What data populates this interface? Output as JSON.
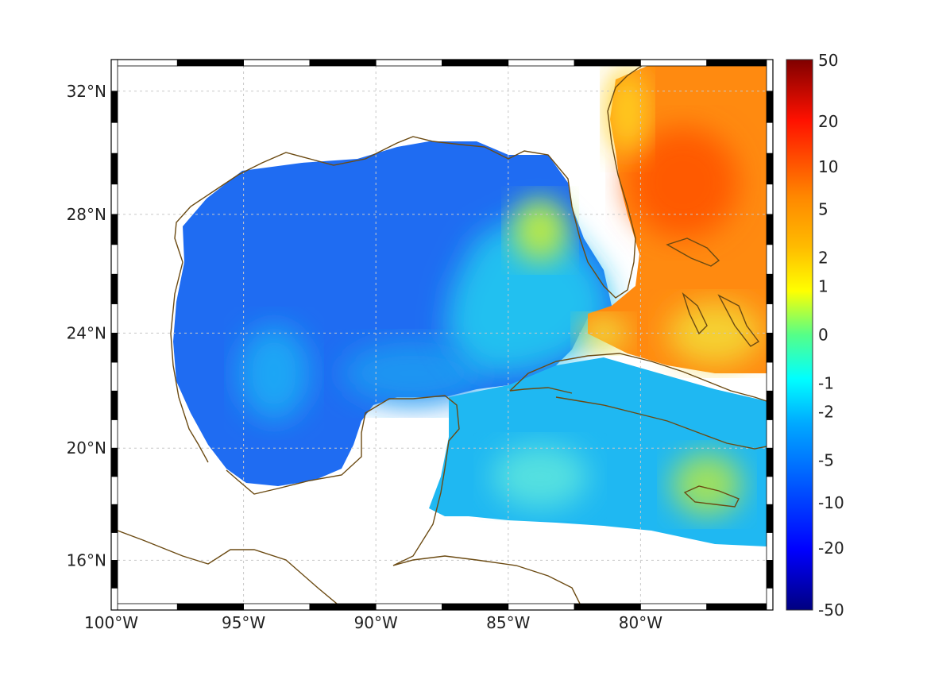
{
  "map": {
    "projection": "mercator",
    "lon_range": [
      -100,
      -75
    ],
    "lat_range": [
      14.2,
      33
    ],
    "grid": true,
    "coastline_color": "#6b4a12",
    "lon_ticks": [
      {
        "value": -100,
        "label": "100°W"
      },
      {
        "value": -95,
        "label": "95°W"
      },
      {
        "value": -90,
        "label": "90°W"
      },
      {
        "value": -85,
        "label": "85°W"
      },
      {
        "value": -80,
        "label": "80°W"
      }
    ],
    "lat_ticks": [
      {
        "value": 32,
        "label": "32°N"
      },
      {
        "value": 28,
        "label": "28°N"
      },
      {
        "value": 24,
        "label": "24°N"
      },
      {
        "value": 20,
        "label": "20°N"
      },
      {
        "value": 16,
        "label": "16°N"
      }
    ]
  },
  "colorbar": {
    "colormap": "jet",
    "scale": "symmetric-log",
    "ticks": [
      {
        "value": 50,
        "label": "50"
      },
      {
        "value": 20,
        "label": "20"
      },
      {
        "value": 10,
        "label": "10"
      },
      {
        "value": 5,
        "label": "5"
      },
      {
        "value": 2,
        "label": "2"
      },
      {
        "value": 1,
        "label": "1"
      },
      {
        "value": 0,
        "label": "0"
      },
      {
        "value": -1,
        "label": "-1"
      },
      {
        "value": -2,
        "label": "-2"
      },
      {
        "value": -5,
        "label": "-5"
      },
      {
        "value": -10,
        "label": "-10"
      },
      {
        "value": -20,
        "label": "-20"
      },
      {
        "value": -50,
        "label": "-50"
      }
    ]
  }
}
